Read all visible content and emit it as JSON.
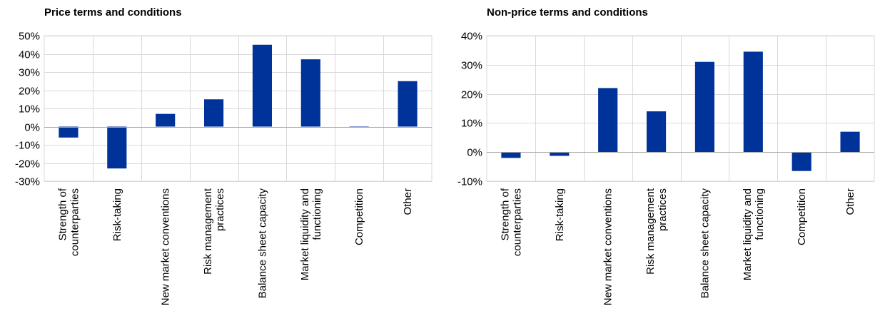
{
  "chart_data": [
    {
      "type": "bar",
      "title": "Price terms and conditions",
      "categories": [
        [
          "Strength of",
          "counterparties"
        ],
        [
          "Risk-taking"
        ],
        [
          "New market conventions"
        ],
        [
          "Risk management",
          "practices"
        ],
        [
          "Balance sheet capacity"
        ],
        [
          "Market liquidity and",
          "functioning"
        ],
        [
          "Competition"
        ],
        [
          "Other"
        ]
      ],
      "values": [
        -6,
        -23,
        7,
        15,
        45,
        37,
        -0.3,
        25
      ],
      "ylim": [
        -30,
        50
      ],
      "yticks": [
        -30,
        -20,
        -10,
        0,
        10,
        20,
        30,
        40,
        50
      ],
      "ytick_labels": [
        "-30%",
        "-20%",
        "-10%",
        "0%",
        "10%",
        "20%",
        "30%",
        "40%",
        "50%"
      ],
      "grid": true,
      "bar_color": "#003399",
      "grid_color": "#d9d9d9"
    },
    {
      "type": "bar",
      "title": "Non-price terms and conditions",
      "categories": [
        [
          "Strength of",
          "counterparties"
        ],
        [
          "Risk-taking"
        ],
        [
          "New market conventions"
        ],
        [
          "Risk management",
          "practices"
        ],
        [
          "Balance sheet capacity"
        ],
        [
          "Market liquidity and",
          "functioning"
        ],
        [
          "Competition"
        ],
        [
          "Other"
        ]
      ],
      "values": [
        -2,
        -1.3,
        22,
        14,
        31,
        34.5,
        -6.5,
        7
      ],
      "ylim": [
        -10,
        40
      ],
      "yticks": [
        -10,
        0,
        10,
        20,
        30,
        40
      ],
      "ytick_labels": [
        "-10%",
        "0%",
        "10%",
        "20%",
        "30%",
        "40%"
      ],
      "grid": true,
      "bar_color": "#003399",
      "grid_color": "#d9d9d9"
    }
  ]
}
